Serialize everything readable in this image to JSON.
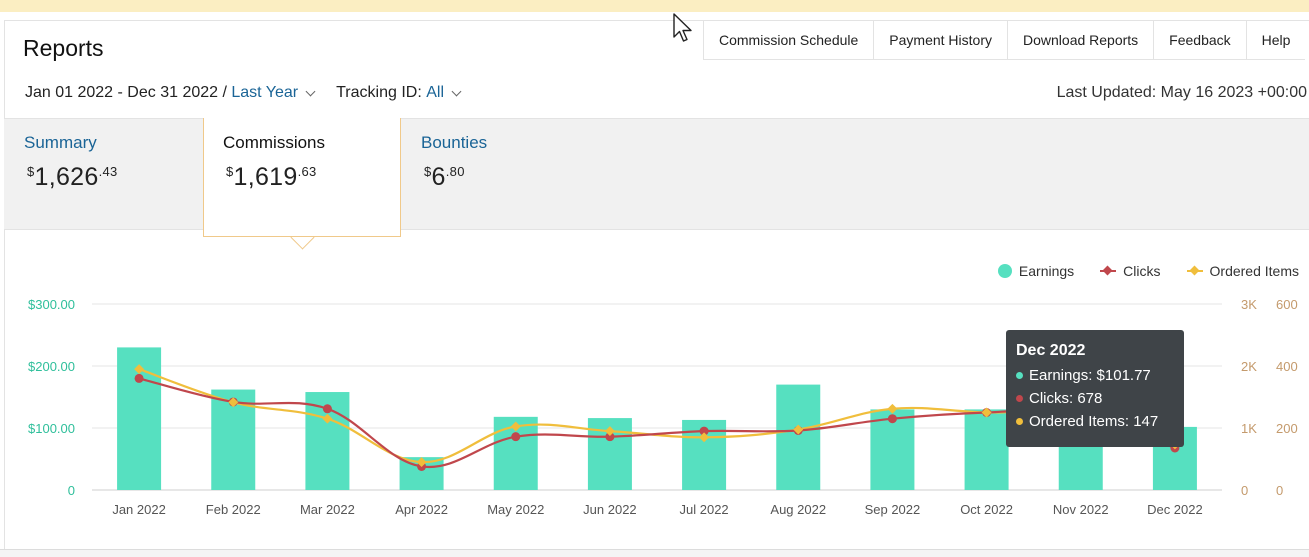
{
  "page": {
    "title": "Reports"
  },
  "nav": [
    "Commission Schedule",
    "Payment History",
    "Download Reports",
    "Feedback",
    "Help"
  ],
  "filters": {
    "date_range": "Jan 01 2022 - Dec 31 2022 /",
    "preset": "Last Year",
    "tracking_label": "Tracking ID:",
    "tracking_value": "All"
  },
  "last_updated": "Last Updated: May 16 2023 +00:00",
  "tabs": [
    {
      "label": "Summary",
      "currency": "$",
      "whole": "1,626",
      "fraction": ".43"
    },
    {
      "label": "Commissions",
      "currency": "$",
      "whole": "1,619",
      "fraction": ".63"
    },
    {
      "label": "Bounties",
      "currency": "$",
      "whole": "6",
      "fraction": ".80"
    }
  ],
  "legend": {
    "earnings": "Earnings",
    "clicks": "Clicks",
    "ordered": "Ordered Items"
  },
  "colors": {
    "earnings": "#56e0c0",
    "clicks": "#c0474c",
    "ordered": "#f0be3c",
    "left_axis": "#2fbf9b",
    "right_axis": "#c49a6c"
  },
  "tooltip": {
    "title": "Dec 2022",
    "earnings": "Earnings: $101.77",
    "clicks": "Clicks: 678",
    "ordered": "Ordered Items: 147"
  },
  "chart_data": {
    "type": "bar",
    "categories": [
      "Jan 2022",
      "Feb 2022",
      "Mar 2022",
      "Apr 2022",
      "May 2022",
      "Jun 2022",
      "Jul 2022",
      "Aug 2022",
      "Sep 2022",
      "Oct 2022",
      "Nov 2022",
      "Dec 2022"
    ],
    "series": [
      {
        "name": "Earnings",
        "type": "bar",
        "axis": "left",
        "values": [
          230,
          162,
          158,
          53,
          118,
          116,
          113,
          170,
          130,
          130,
          118,
          101.77
        ]
      },
      {
        "name": "Clicks",
        "type": "line",
        "axis": "right1",
        "values": [
          1800,
          1420,
          1310,
          380,
          860,
          860,
          950,
          960,
          1150,
          1250,
          1250,
          678
        ]
      },
      {
        "name": "Ordered Items",
        "type": "line",
        "axis": "right2",
        "values": [
          390,
          283,
          230,
          90,
          205,
          190,
          170,
          195,
          262,
          250,
          250,
          147
        ]
      }
    ],
    "y_left": {
      "min": 0,
      "max": 300,
      "ticks": [
        "0",
        "$100.00",
        "$200.00",
        "$300.00"
      ]
    },
    "y_right1": {
      "min": 0,
      "max": 3000,
      "ticks": [
        "0",
        "1K",
        "2K",
        "3K"
      ]
    },
    "y_right2": {
      "min": 0,
      "max": 600,
      "ticks": [
        "0",
        "200",
        "400",
        "600"
      ]
    },
    "grid": true,
    "legend_position": "top-right"
  }
}
